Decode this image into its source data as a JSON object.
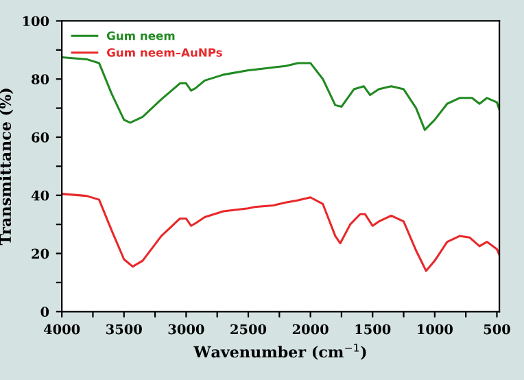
{
  "chart_data": {
    "type": "line",
    "xlabel": "Wavenumber (cm$^{−1}$)",
    "ylabel": "Transmittance (%)",
    "xlim": [
      4000,
      480
    ],
    "ylim": [
      0,
      100
    ],
    "xticks": [
      4000,
      {
        "value": 3750,
        "label": null
      },
      3500,
      {
        "value": 3250,
        "label": null
      },
      3000,
      {
        "value": 2750,
        "label": null
      },
      2500,
      {
        "value": 2250,
        "label": null
      },
      2000,
      {
        "value": 1750,
        "label": null
      },
      1500,
      {
        "value": 1250,
        "label": null
      },
      1000,
      {
        "value": 750,
        "label": null
      },
      500
    ],
    "yticks": [
      0,
      {
        "value": 10,
        "label": null
      },
      20,
      {
        "value": 30,
        "label": null
      },
      40,
      {
        "value": 50,
        "label": null
      },
      60,
      {
        "value": 70,
        "label": null
      },
      80,
      {
        "value": 90,
        "label": null
      },
      100
    ],
    "grid": false,
    "legend": "top left",
    "marker": "none",
    "line_style": "solid",
    "series": [
      {
        "name": "Gum neem",
        "color": "#218a21",
        "x": [
          4000,
          3800,
          3700,
          3600,
          3500,
          3450,
          3350,
          3200,
          3050,
          3000,
          2960,
          2920,
          2850,
          2700,
          2500,
          2400,
          2300,
          2200,
          2100,
          2000,
          1900,
          1800,
          1750,
          1650,
          1570,
          1520,
          1450,
          1350,
          1250,
          1150,
          1080,
          1000,
          900,
          800,
          700,
          640,
          580,
          500,
          480
        ],
        "values": [
          87.5,
          86.8,
          85.5,
          75,
          66,
          65,
          67,
          73,
          78.5,
          78.5,
          76,
          77,
          79.5,
          81.5,
          83,
          83.5,
          84,
          84.5,
          85.5,
          85.5,
          80,
          71,
          70.5,
          76.5,
          77.5,
          74.5,
          76.5,
          77.5,
          76.5,
          70,
          62.5,
          66,
          71.5,
          73.5,
          73.5,
          71.5,
          73.5,
          72,
          69.5
        ]
      },
      {
        "name": "Gum neem–AuNPs",
        "color": "#e8282a",
        "x": [
          4000,
          3800,
          3700,
          3600,
          3500,
          3430,
          3350,
          3200,
          3050,
          3000,
          2960,
          2920,
          2850,
          2700,
          2500,
          2450,
          2300,
          2200,
          2100,
          2000,
          1900,
          1800,
          1760,
          1680,
          1600,
          1560,
          1500,
          1450,
          1350,
          1250,
          1150,
          1070,
          1000,
          900,
          800,
          720,
          640,
          580,
          500,
          480
        ],
        "values": [
          40.5,
          39.8,
          38.5,
          28,
          18,
          15.5,
          17.5,
          26,
          32,
          32,
          29.5,
          30.5,
          32.5,
          34.5,
          35.5,
          36,
          36.5,
          37.5,
          38.3,
          39.3,
          37,
          26,
          23.5,
          30,
          33.5,
          33.5,
          29.5,
          31,
          33,
          31,
          21,
          14,
          17.5,
          24,
          26,
          25.5,
          22.5,
          24,
          21.5,
          19.5
        ]
      }
    ]
  }
}
